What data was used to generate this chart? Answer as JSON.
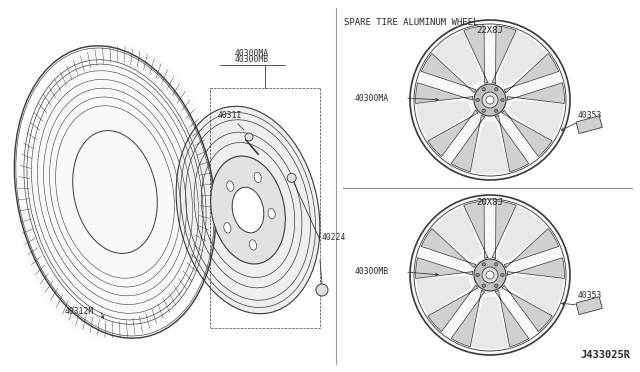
{
  "bg_color": "#ffffff",
  "line_color": "#3a3a3a",
  "text_color": "#2a2a2a",
  "title_text": "SPARE TIRE ALUMINUM WHEEL",
  "wheel1_label": "22X8J",
  "wheel2_label": "20X8J",
  "footnote": "J433025R",
  "label_40300MA_top": "40300MA",
  "label_40300MB_top": "40300MB",
  "label_4031I": "4031I",
  "label_40224": "40224",
  "label_40312M": "40312M",
  "label_40300MA_right": "40300MA",
  "label_40300MB_right": "40300MB",
  "label_40353_1": "40353",
  "label_40353_2": "40353"
}
